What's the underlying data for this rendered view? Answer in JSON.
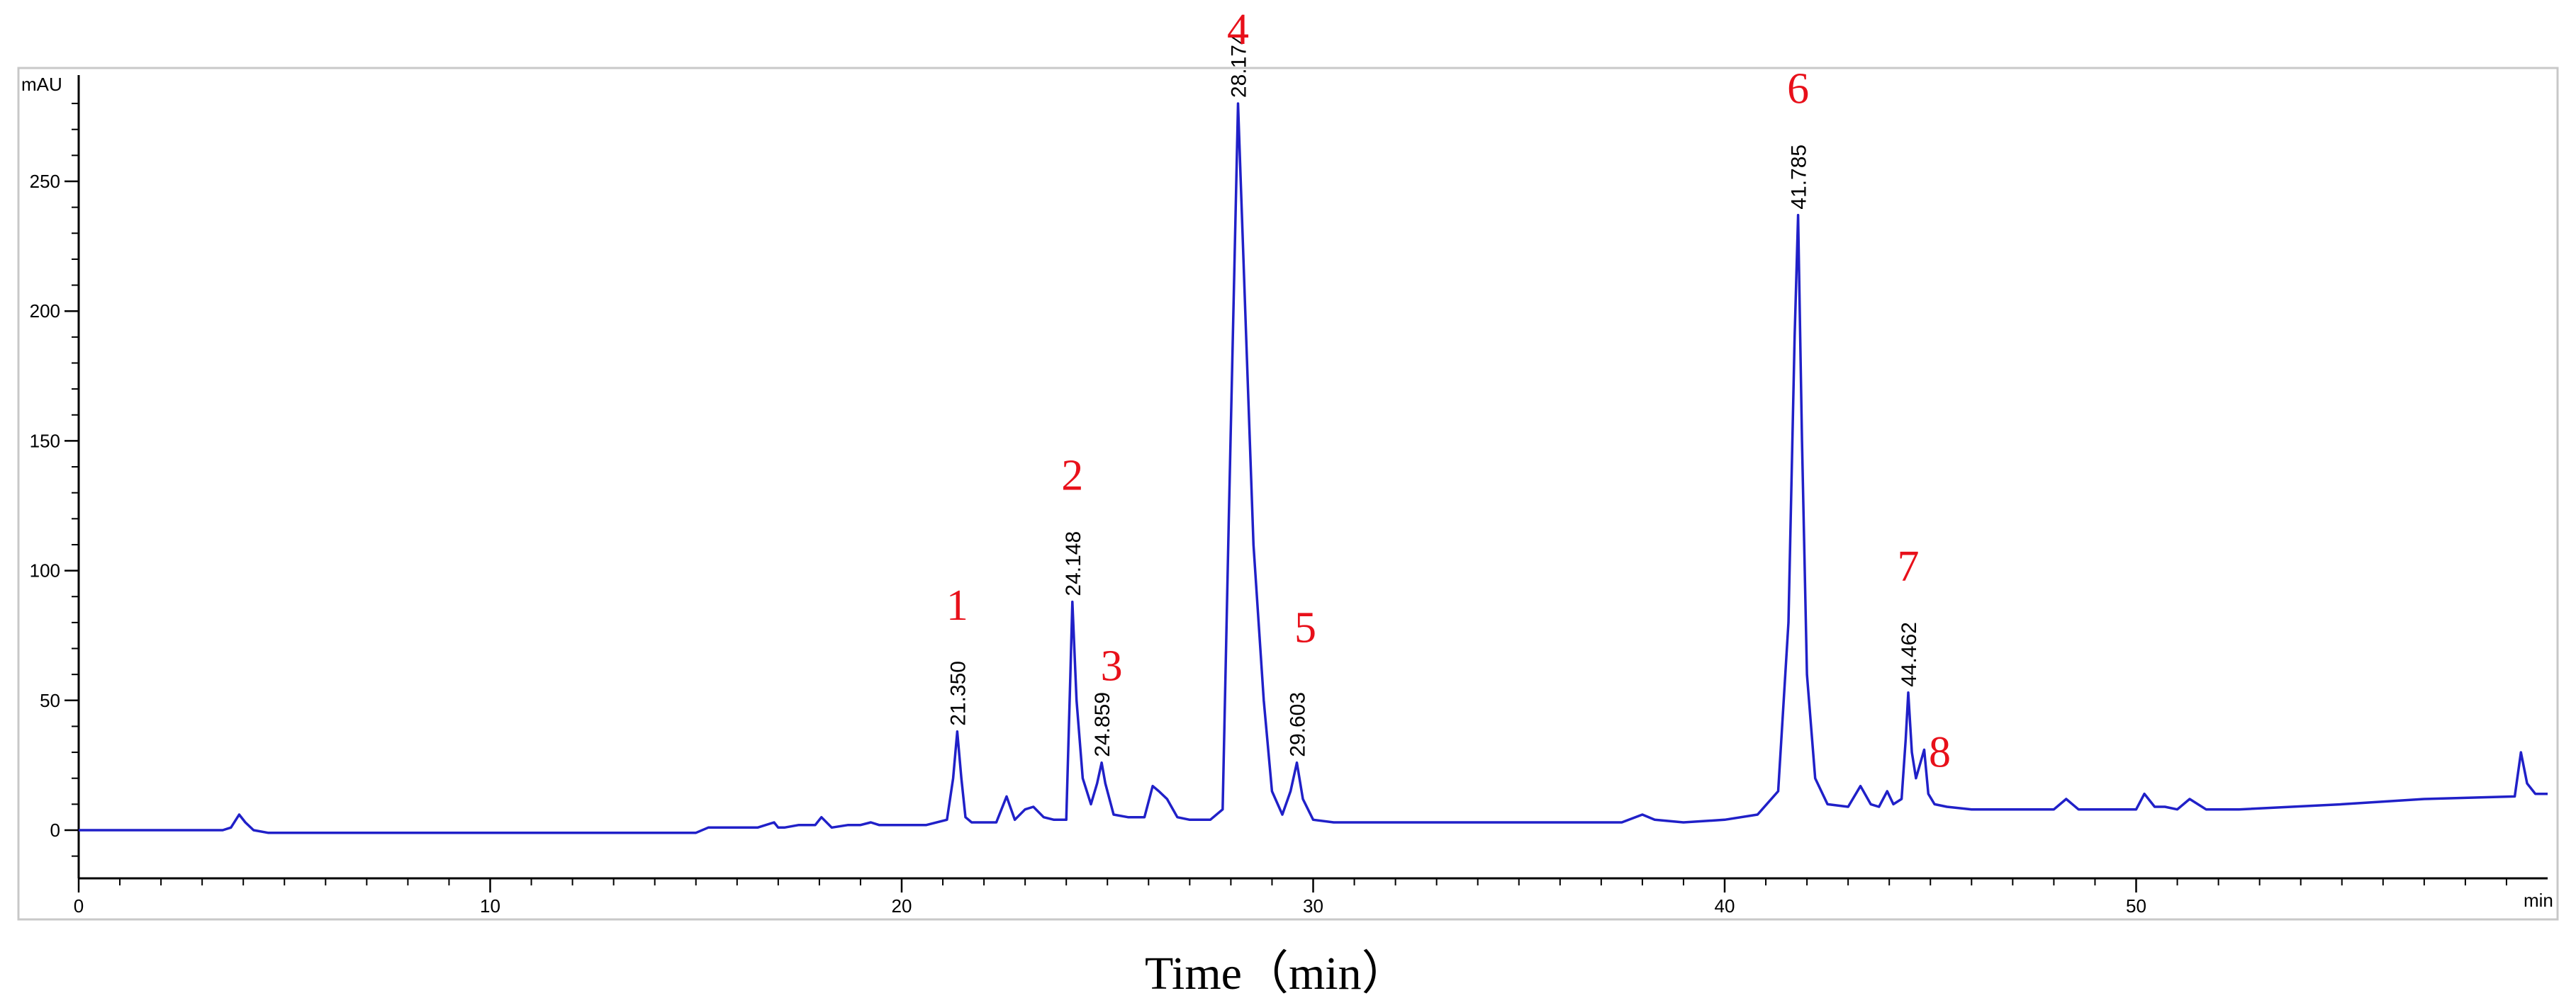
{
  "chart_data": {
    "type": "line",
    "title": "",
    "xlabel": "Time（min）",
    "ylabel": "",
    "y_unit_label": "mAU",
    "x_unit_label": "min",
    "xlim": [
      0,
      60
    ],
    "ylim": [
      -15,
      290
    ],
    "x_ticks": [
      0,
      10,
      20,
      30,
      40,
      50
    ],
    "y_ticks": [
      0,
      50,
      100,
      150,
      200,
      250
    ],
    "grid": false,
    "colors": {
      "trace": "#2020c8",
      "peak_number": "#e8101a",
      "frame": "#c8c8c8"
    },
    "series": [
      {
        "x": [
          0,
          3.2,
          3.5,
          3.7,
          3.9,
          4.05,
          4.25,
          4.6,
          5.5,
          10,
          15,
          15.3,
          16.5,
          16.9,
          17.0,
          17.15,
          17.5,
          17.9,
          18.05,
          18.3,
          18.7,
          19.0,
          19.25,
          19.45,
          19.7,
          20.0,
          20.6,
          21.1,
          21.25,
          21.35,
          21.45,
          21.55,
          21.7,
          22.3,
          22.55,
          22.75,
          23.0,
          23.2,
          23.45,
          23.7,
          24.0,
          24.1,
          24.148,
          24.25,
          24.4,
          24.6,
          24.75,
          24.859,
          24.95,
          25.15,
          25.5,
          25.9,
          26.1,
          26.25,
          26.45,
          26.7,
          27.0,
          27.5,
          27.8,
          27.95,
          28.174,
          28.35,
          28.55,
          28.8,
          29.0,
          29.25,
          29.45,
          29.603,
          29.75,
          30.0,
          30.5,
          33,
          35,
          37.5,
          38.0,
          38.3,
          39,
          40,
          40.8,
          41.3,
          41.55,
          41.7,
          41.785,
          41.88,
          42.0,
          42.2,
          42.5,
          43.0,
          43.3,
          43.55,
          43.75,
          43.95,
          44.1,
          44.3,
          44.4,
          44.462,
          44.55,
          44.65,
          44.85,
          44.95,
          45.1,
          45.4,
          46,
          48,
          48.3,
          48.6,
          50,
          50.2,
          50.45,
          50.7,
          51.0,
          51.3,
          51.7,
          52.5,
          55,
          57,
          59.2,
          59.35,
          59.5,
          59.7,
          60
        ],
        "y": [
          0,
          0,
          0,
          1,
          6,
          3,
          0,
          -1,
          -1,
          -1,
          -1,
          1,
          1,
          3,
          1,
          1,
          2,
          2,
          5,
          1,
          2,
          2,
          3,
          2,
          2,
          2,
          2,
          4,
          20,
          38,
          20,
          5,
          3,
          3,
          13,
          4,
          8,
          9,
          5,
          4,
          4,
          60,
          88,
          50,
          20,
          10,
          18,
          26,
          18,
          6,
          5,
          5,
          17,
          15,
          12,
          5,
          4,
          4,
          8,
          120,
          280,
          200,
          110,
          50,
          15,
          6,
          15,
          26,
          12,
          4,
          3,
          3,
          3,
          3,
          6,
          4,
          3,
          4,
          6,
          15,
          80,
          190,
          237,
          150,
          60,
          20,
          10,
          9,
          17,
          10,
          9,
          15,
          10,
          12,
          35,
          53,
          30,
          20,
          31,
          14,
          10,
          9,
          8,
          8,
          12,
          8,
          8,
          14,
          9,
          9,
          8,
          12,
          8,
          8,
          10,
          12,
          13,
          30,
          18,
          14,
          14
        ]
      }
    ],
    "peaks": [
      {
        "number": "1",
        "rt": 21.35,
        "rt_label": "21.350"
      },
      {
        "number": "2",
        "rt": 24.148,
        "rt_label": "24.148"
      },
      {
        "number": "3",
        "rt": 24.859,
        "rt_label": "24.859"
      },
      {
        "number": "4",
        "rt": 28.174,
        "rt_label": "28.174"
      },
      {
        "number": "5",
        "rt": 29.603,
        "rt_label": "29.603"
      },
      {
        "number": "6",
        "rt": 41.785,
        "rt_label": "41.785"
      },
      {
        "number": "7",
        "rt": 44.462,
        "rt_label": "44.462"
      },
      {
        "number": "8",
        "rt": 44.85,
        "rt_label": ""
      }
    ]
  }
}
